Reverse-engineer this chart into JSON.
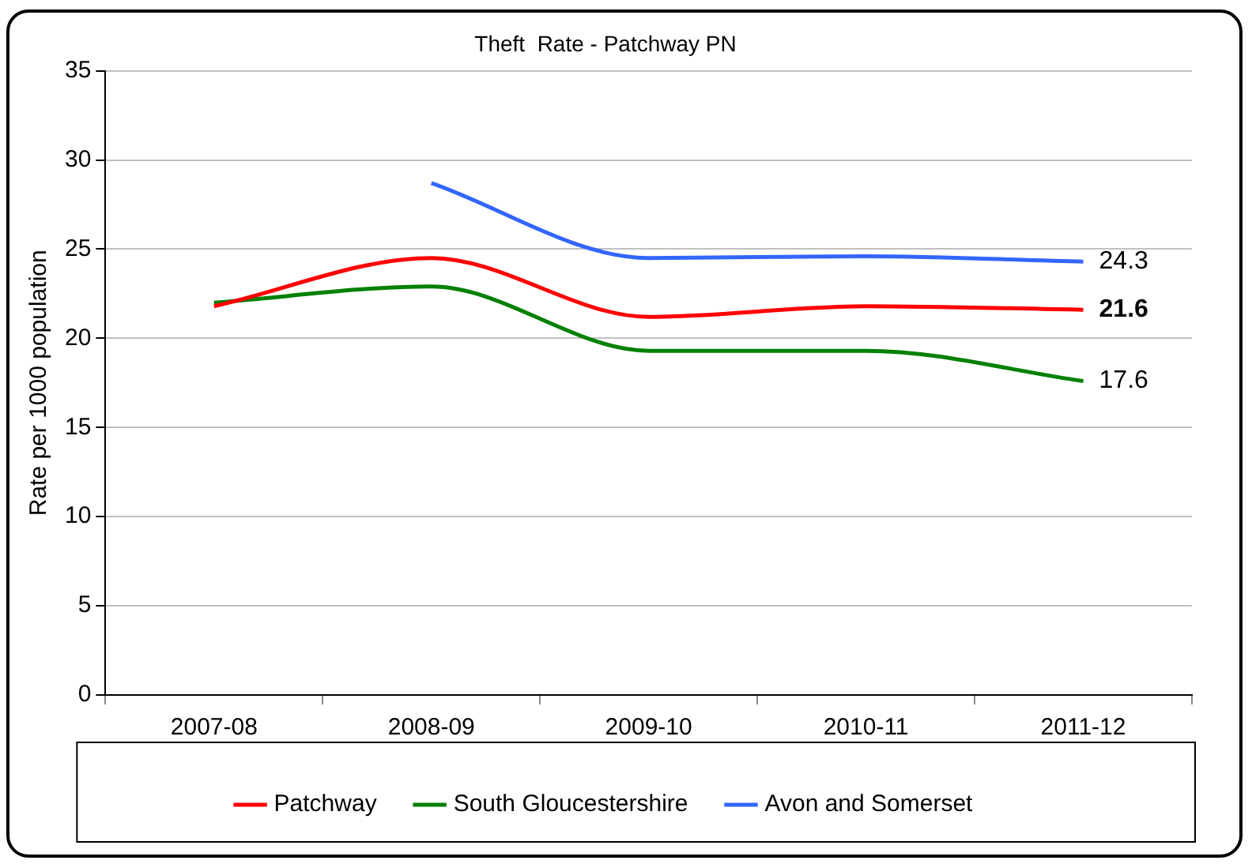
{
  "chart_data": {
    "type": "line",
    "title": "Theft  Rate - Patchway PN",
    "ylabel": "Rate per 1000 population",
    "categories": [
      "2007-08",
      "2008-09",
      "2009-10",
      "2010-11",
      "2011-12"
    ],
    "series": [
      {
        "name": "Patchway",
        "color": "#ff0000",
        "values": [
          21.8,
          24.5,
          21.2,
          21.8,
          21.6
        ],
        "value_labels": [
          null,
          null,
          null,
          null,
          "21.6"
        ]
      },
      {
        "name": "South Gloucestershire",
        "color": "#008000",
        "values": [
          22.0,
          22.9,
          19.3,
          19.3,
          17.6
        ],
        "value_labels": [
          null,
          null,
          null,
          null,
          "17.6"
        ]
      },
      {
        "name": "Avon and Somerset",
        "color": "#3366ff",
        "values": [
          null,
          28.7,
          24.5,
          24.6,
          24.3
        ],
        "value_labels": [
          null,
          null,
          null,
          null,
          "24.3"
        ]
      }
    ],
    "ylim": [
      0,
      35
    ],
    "yticks": [
      0,
      5,
      10,
      15,
      20,
      25,
      30,
      35
    ],
    "grid": "y",
    "legend": "bottom",
    "marker": "none",
    "line_style": "solid"
  }
}
